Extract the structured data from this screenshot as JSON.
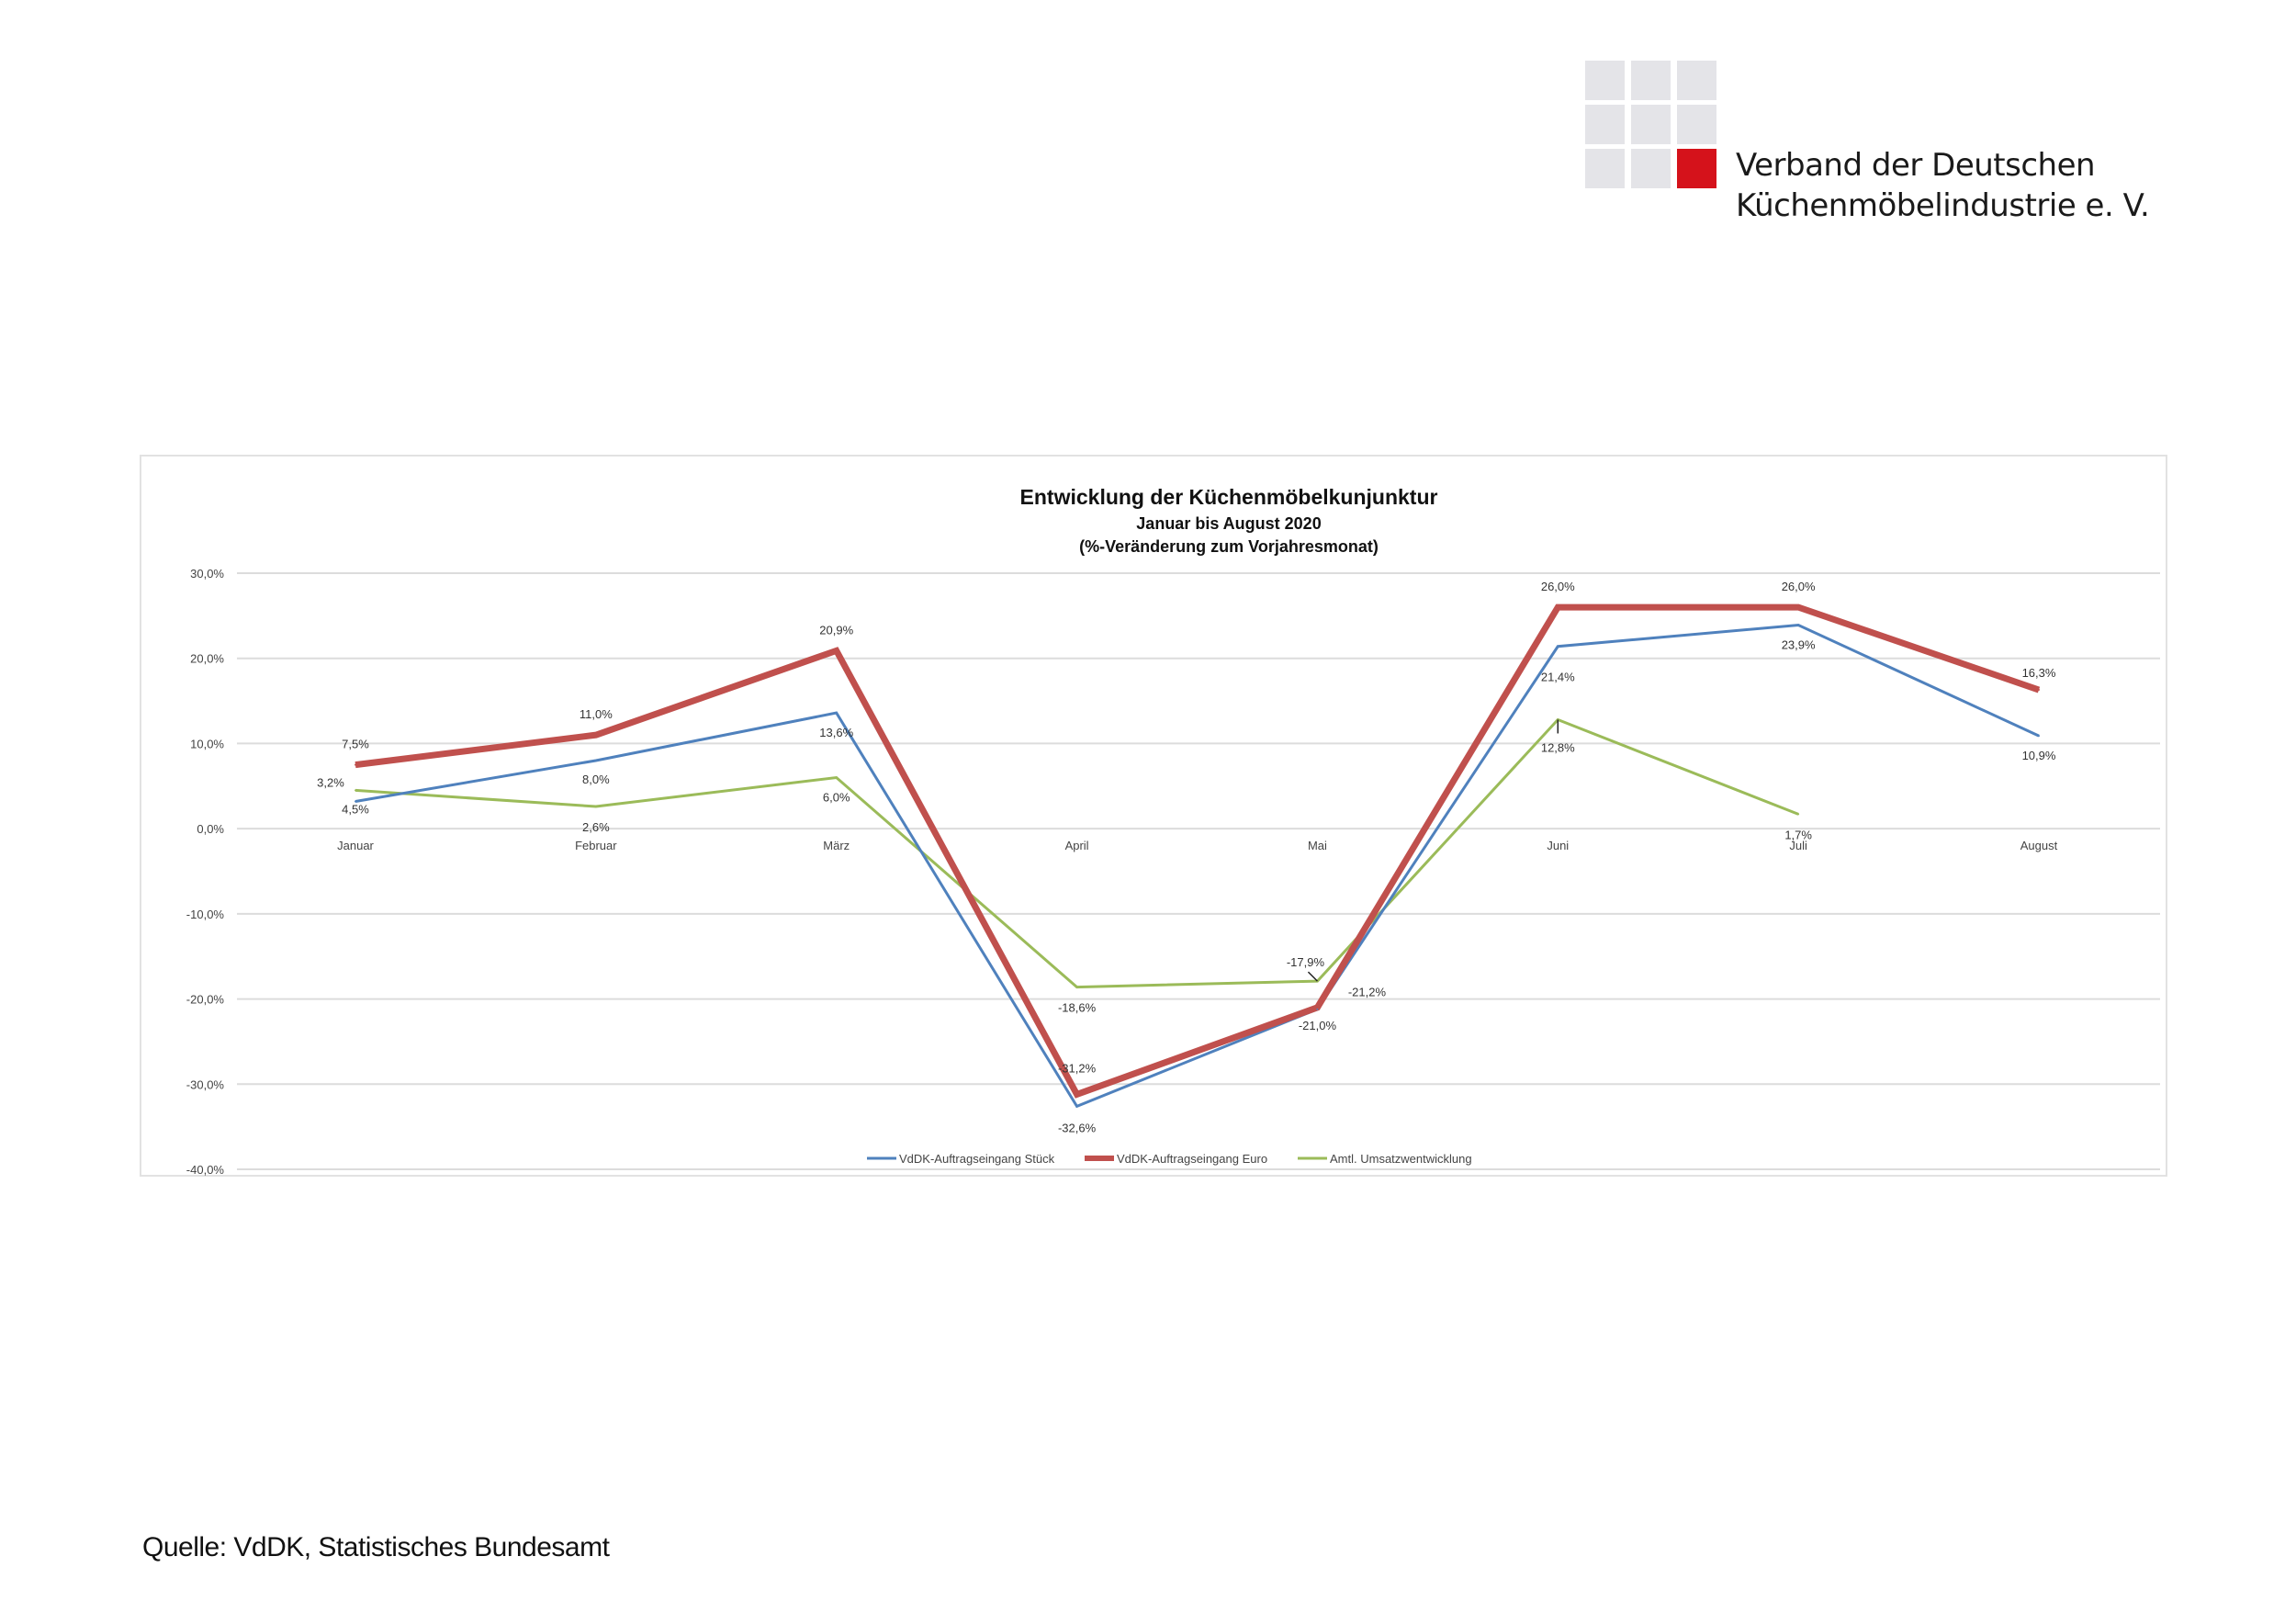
{
  "logo": {
    "line1": "Verband der Deutschen",
    "line2": "Küchenmöbelindustrie e. V.",
    "accent_color": "#d5121b",
    "square_color": "#e4e4e8"
  },
  "source": "Quelle: VdDK, Statistisches Bundesamt",
  "chart_data": {
    "type": "line",
    "title": "Entwicklung der Küchenmöbelkunjunktur",
    "subtitle": "Januar bis August 2020",
    "subtitle2": "(%-Veränderung zum Vorjahresmonat)",
    "categories": [
      "Januar",
      "Februar",
      "März",
      "April",
      "Mai",
      "Juni",
      "Juli",
      "August"
    ],
    "ylim": [
      -40,
      30
    ],
    "yticks": [
      "30,0%",
      "20,0%",
      "10,0%",
      "0,0%",
      "-10,0%",
      "-20,0%",
      "-30,0%",
      "-40,0%"
    ],
    "grid": true,
    "legend_position": "bottom",
    "series": [
      {
        "name": "VdDK-Auftragseingang Stück",
        "color": "#4f81bd",
        "values": [
          3.2,
          8.0,
          13.6,
          -32.6,
          -21.2,
          21.4,
          23.9,
          10.9
        ],
        "labels": [
          "3,2%",
          "8,0%",
          "13,6%",
          "-32,6%",
          "-21,2%",
          "21,4%",
          "23,9%",
          "10,9%"
        ]
      },
      {
        "name": "VdDK-Auftragseingang Euro",
        "color": "#c0504d",
        "values": [
          7.5,
          11.0,
          20.9,
          -31.2,
          -21.0,
          26.0,
          26.0,
          16.3
        ],
        "labels": [
          "7,5%",
          "11,0%",
          "20,9%",
          "-31,2%",
          "-21,0%",
          "26,0%",
          "26,0%",
          "16,3%"
        ]
      },
      {
        "name": "Amtl. Umsatzwentwicklung",
        "color": "#9bbb59",
        "values": [
          4.5,
          2.6,
          6.0,
          -18.6,
          -17.9,
          12.8,
          1.7,
          null
        ],
        "labels": [
          "4,5%",
          "2,6%",
          "6,0%",
          "-18,6%",
          "-17,9%",
          "12,8%",
          "1,7%",
          null
        ]
      }
    ]
  }
}
